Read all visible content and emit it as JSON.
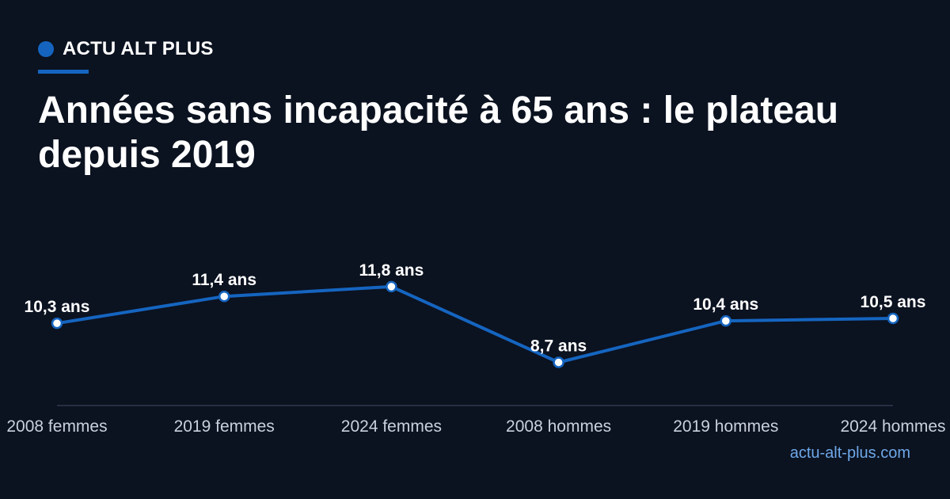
{
  "brand": {
    "name": "ACTU ALT PLUS",
    "accent_color": "#1565c0"
  },
  "title": "Années sans incapacité à 65 ans : le plateau depuis 2019",
  "source": "actu-alt-plus.com",
  "chart_data": {
    "type": "line",
    "categories": [
      "2008 femmes",
      "2019 femmes",
      "2024 femmes",
      "2008 hommes",
      "2019 hommes",
      "2024 hommes"
    ],
    "values": [
      10.3,
      11.4,
      11.8,
      8.7,
      10.4,
      10.5
    ],
    "data_labels": [
      "10,3 ans",
      "11,4 ans",
      "11,8 ans",
      "8,7 ans",
      "10,4 ans",
      "10,5 ans"
    ],
    "unit": "ans",
    "ylim": [
      7.0,
      14.0
    ],
    "grid": false,
    "legend": "none",
    "line_color": "#1565c0",
    "marker_fill": "#ffffff",
    "axis_color": "#2f3b4e",
    "tick_label_color": "#c9d1dc"
  }
}
